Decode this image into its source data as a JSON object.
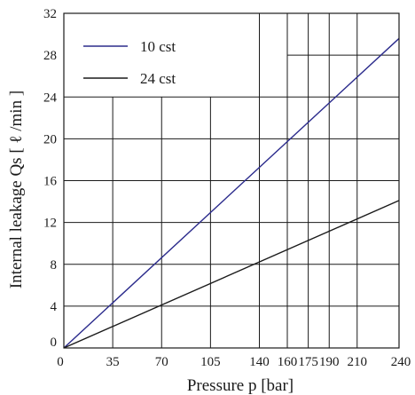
{
  "chart_data": {
    "type": "line",
    "xlabel": "Pressure  p  [bar]",
    "ylabel": "Internal  leakage Qs [  ℓ /min ]",
    "xlim": [
      0,
      240
    ],
    "ylim": [
      0,
      32
    ],
    "x_ticks": [
      0,
      35,
      70,
      105,
      140,
      160,
      175,
      190,
      210,
      240
    ],
    "x_tick_labels": [
      "0",
      "35",
      "70",
      "105",
      "140",
      "160",
      "175",
      "190",
      "210",
      "240"
    ],
    "y_ticks": [
      0,
      4,
      8,
      12,
      16,
      20,
      24,
      28,
      32
    ],
    "y_tick_labels": [
      "0",
      "4",
      "8",
      "12",
      "16",
      "20",
      "24",
      "28",
      "32"
    ],
    "grid": true,
    "legend_position": "top-left",
    "series": [
      {
        "name": "10 cst",
        "color": "#2b2b8c",
        "x": [
          0,
          240
        ],
        "y": [
          0,
          29.6
        ]
      },
      {
        "name": "24 cst",
        "color": "#1a1a1a",
        "x": [
          0,
          240
        ],
        "y": [
          0,
          14.1
        ]
      }
    ]
  }
}
